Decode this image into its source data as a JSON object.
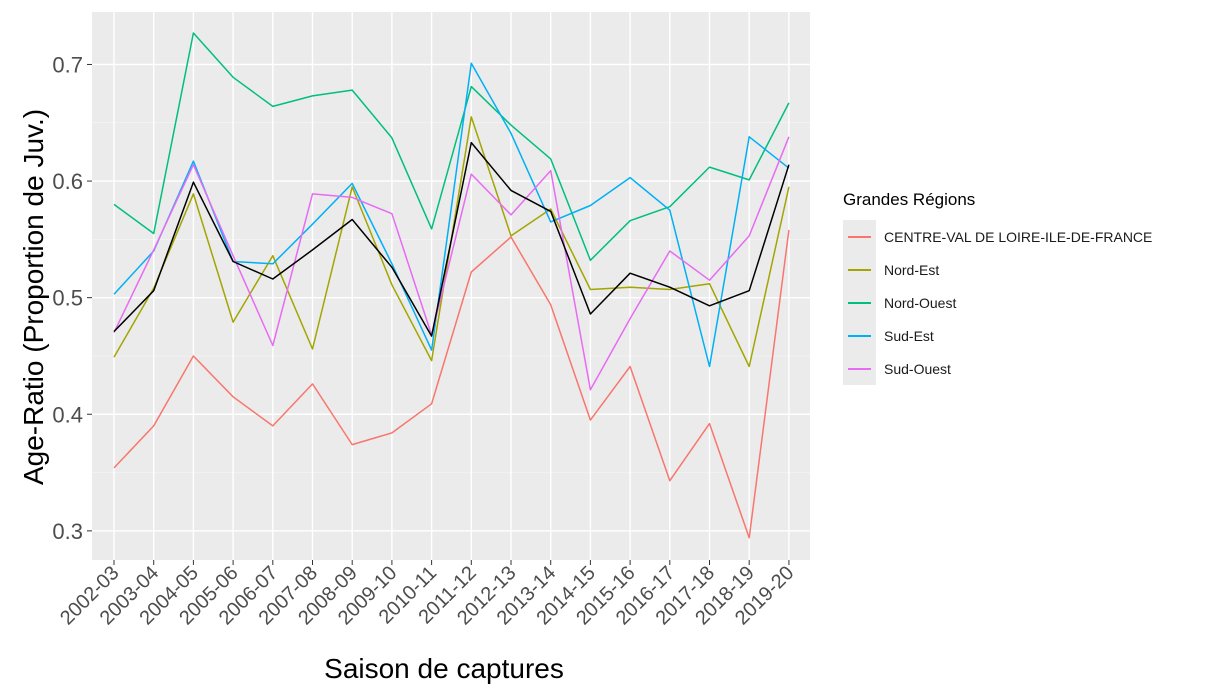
{
  "chart_data": {
    "type": "line",
    "title": "",
    "xlabel": "Saison de captures",
    "ylabel": "Age-Ratio (Proportion de Juv.)",
    "categories": [
      "2002-03",
      "2003-04",
      "2004-05",
      "2005-06",
      "2006-07",
      "2007-08",
      "2008-09",
      "2009-10",
      "2010-11",
      "2011-12",
      "2012-13",
      "2013-14",
      "2014-15",
      "2015-16",
      "2016-17",
      "2017-18",
      "2018-19",
      "2019-20"
    ],
    "ylim": [
      0.275,
      0.745
    ],
    "yticks": [
      0.3,
      0.4,
      0.5,
      0.6,
      0.7
    ],
    "ytick_labels": [
      "0.3",
      "0.4",
      "0.5",
      "0.6",
      "0.7"
    ],
    "grid": true,
    "legend": {
      "title": "Grandes Régions",
      "position": "right"
    },
    "series": [
      {
        "name": "CENTRE-VAL DE LOIRE-ILE-DE-FRANCE",
        "color": "#F8766D",
        "in_legend": true,
        "values": [
          0.354,
          0.39,
          0.45,
          0.415,
          0.39,
          0.426,
          0.374,
          0.384,
          0.409,
          0.522,
          0.552,
          0.494,
          0.395,
          0.441,
          0.343,
          0.392,
          0.294,
          0.558
        ]
      },
      {
        "name": "Nord-Est",
        "color": "#A3A500",
        "in_legend": true,
        "values": [
          0.449,
          0.508,
          0.589,
          0.479,
          0.536,
          0.456,
          0.595,
          0.511,
          0.446,
          0.655,
          0.553,
          0.576,
          0.507,
          0.509,
          0.507,
          0.512,
          0.441,
          0.595
        ]
      },
      {
        "name": "Nord-Ouest",
        "color": "#00BF7D",
        "in_legend": true,
        "values": [
          0.58,
          0.555,
          0.727,
          0.689,
          0.664,
          0.673,
          0.678,
          0.637,
          0.559,
          0.681,
          0.648,
          0.619,
          0.532,
          0.566,
          0.578,
          0.612,
          0.601,
          0.667
        ]
      },
      {
        "name": "Sud-Est",
        "color": "#00B0F6",
        "in_legend": true,
        "values": [
          0.503,
          0.54,
          0.617,
          0.531,
          0.529,
          0.563,
          0.598,
          0.529,
          0.455,
          0.701,
          0.641,
          0.565,
          0.579,
          0.603,
          0.575,
          0.441,
          0.638,
          0.611
        ]
      },
      {
        "name": "Sud-Ouest",
        "color": "#E76BF3",
        "in_legend": true,
        "values": [
          0.47,
          0.541,
          0.614,
          0.536,
          0.459,
          0.589,
          0.586,
          0.572,
          0.468,
          0.606,
          0.571,
          0.609,
          0.421,
          0.482,
          0.54,
          0.515,
          0.553,
          0.638
        ]
      },
      {
        "name": "",
        "color": "#000000",
        "in_legend": false,
        "values": [
          0.471,
          0.506,
          0.599,
          0.531,
          0.516,
          0.541,
          0.567,
          0.526,
          0.467,
          0.633,
          0.592,
          0.574,
          0.486,
          0.521,
          0.509,
          0.493,
          0.506,
          0.614
        ]
      }
    ]
  }
}
